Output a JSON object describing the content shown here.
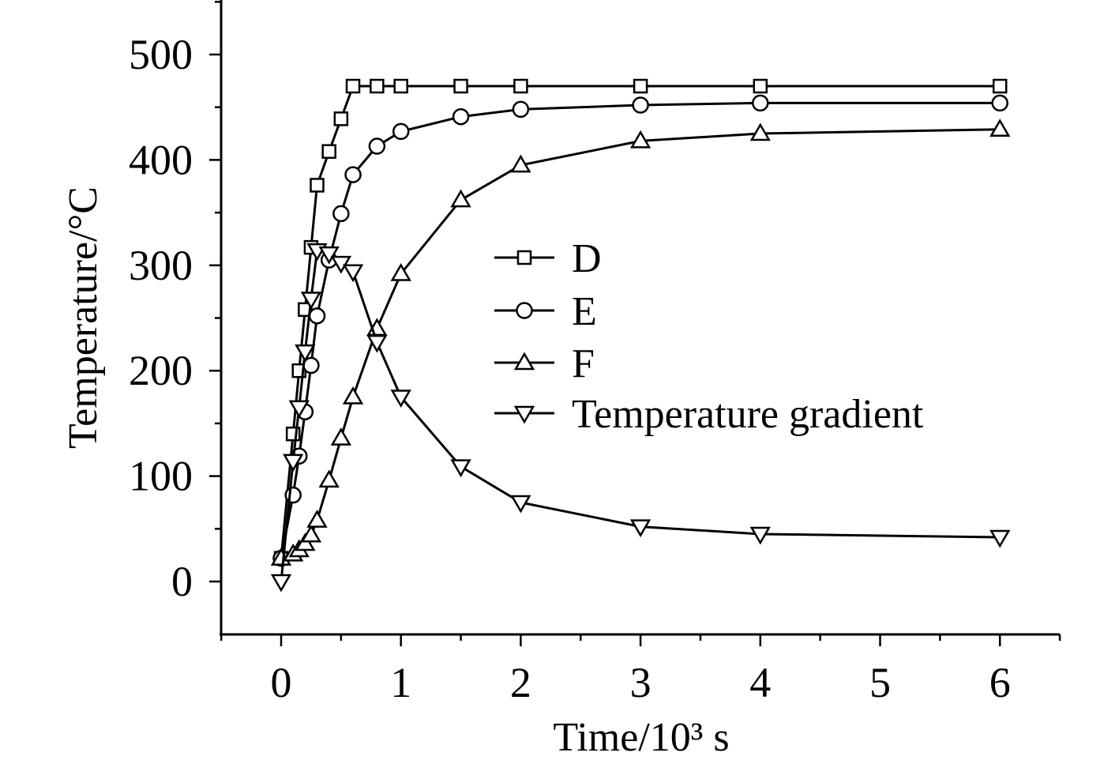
{
  "chart_data": {
    "type": "line",
    "title": "",
    "xlabel": "Time/10³ s",
    "ylabel": "Temperature/°C",
    "xlim": [
      -0.5,
      6.5
    ],
    "ylim": [
      -50,
      550
    ],
    "xticks": [
      0,
      1,
      2,
      3,
      4,
      5,
      6
    ],
    "yticks": [
      0,
      100,
      200,
      300,
      400,
      500
    ],
    "grid": false,
    "legend_position": "center-right",
    "series": [
      {
        "name": "D",
        "marker": "square",
        "x": [
          0,
          0.1,
          0.15,
          0.2,
          0.25,
          0.3,
          0.4,
          0.5,
          0.6,
          0.8,
          1,
          1.5,
          2,
          3,
          4,
          6
        ],
        "y": [
          22,
          140,
          200,
          258,
          317,
          376,
          408,
          439,
          470,
          470,
          470,
          470,
          470,
          470,
          470,
          470
        ]
      },
      {
        "name": "E",
        "marker": "circle",
        "x": [
          0,
          0.1,
          0.15,
          0.2,
          0.25,
          0.3,
          0.4,
          0.5,
          0.6,
          0.8,
          1,
          1.5,
          2,
          3,
          4,
          6
        ],
        "y": [
          22,
          82,
          119,
          161,
          205,
          252,
          305,
          349,
          386,
          413,
          427,
          441,
          448,
          452,
          454,
          454
        ]
      },
      {
        "name": "F",
        "marker": "triangle-up",
        "x": [
          0,
          0.1,
          0.15,
          0.2,
          0.25,
          0.3,
          0.4,
          0.5,
          0.6,
          0.8,
          1,
          1.5,
          2,
          3,
          4,
          6
        ],
        "y": [
          22,
          26,
          30,
          36,
          44,
          58,
          96,
          136,
          175,
          240,
          292,
          362,
          395,
          418,
          425,
          429
        ]
      },
      {
        "name": "Temperature gradient",
        "marker": "triangle-down",
        "x": [
          0,
          0.1,
          0.15,
          0.2,
          0.25,
          0.3,
          0.4,
          0.5,
          0.6,
          0.8,
          1,
          1.5,
          2,
          3,
          4,
          6
        ],
        "y": [
          0,
          114,
          165,
          218,
          268,
          314,
          311,
          302,
          294,
          227,
          175,
          109,
          75,
          52,
          45,
          42
        ]
      }
    ]
  }
}
